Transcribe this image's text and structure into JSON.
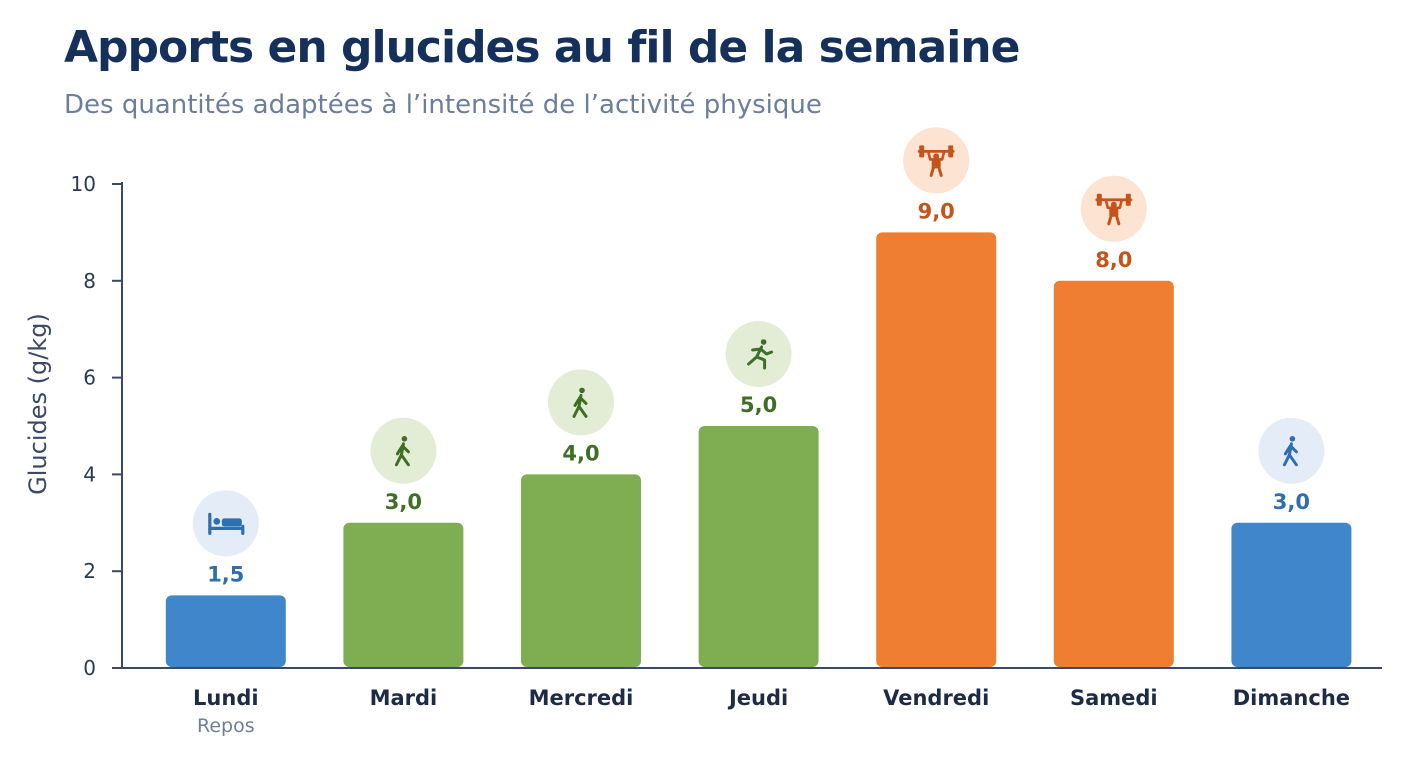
{
  "title": "Apports en glucides au fil de la semaine",
  "subtitle": "Des quantités adaptées à l’intensité de l’activité physique",
  "colors": {
    "rest": "#3f86cb",
    "moderate": "#7ead52",
    "intense": "#ef7d32",
    "title": "#15305b",
    "axis": "#3a4a66"
  },
  "chart_data": {
    "type": "bar",
    "ylabel": "Glucides (g/kg)",
    "ylim": [
      0,
      10
    ],
    "yticks": [
      0,
      2,
      4,
      6,
      8,
      10
    ],
    "grid": false,
    "categories": [
      "Lundi",
      "Mardi",
      "Mercredi",
      "Jeudi",
      "Vendredi",
      "Samedi",
      "Dimanche"
    ],
    "category_notes": [
      "Repos",
      "",
      "",
      "",
      "",
      "",
      ""
    ],
    "values": [
      1.5,
      3.0,
      4.0,
      5.0,
      9.0,
      8.0,
      3.0
    ],
    "value_labels": [
      "1,5",
      "3,0",
      "4,0",
      "5,0",
      "9,0",
      "8,0",
      "3,0"
    ],
    "bar_colors": [
      "#3f86cb",
      "#7ead52",
      "#7ead52",
      "#7ead52",
      "#ef7d32",
      "#ef7d32",
      "#3f86cb"
    ],
    "label_colors": [
      "#2f6fae",
      "#3f6f25",
      "#3f6f25",
      "#3f6f25",
      "#c6531a",
      "#c6531a",
      "#2f6fae"
    ],
    "icons": [
      "bed-icon",
      "walking-icon",
      "walking-icon",
      "running-icon",
      "weightlifting-icon",
      "weightlifting-icon",
      "walking-icon"
    ],
    "icon_bg": [
      "#e3ecf7",
      "#e3edd6",
      "#e3edd6",
      "#e3edd6",
      "#fde3d1",
      "#fde3d1",
      "#e3ecf7"
    ]
  }
}
